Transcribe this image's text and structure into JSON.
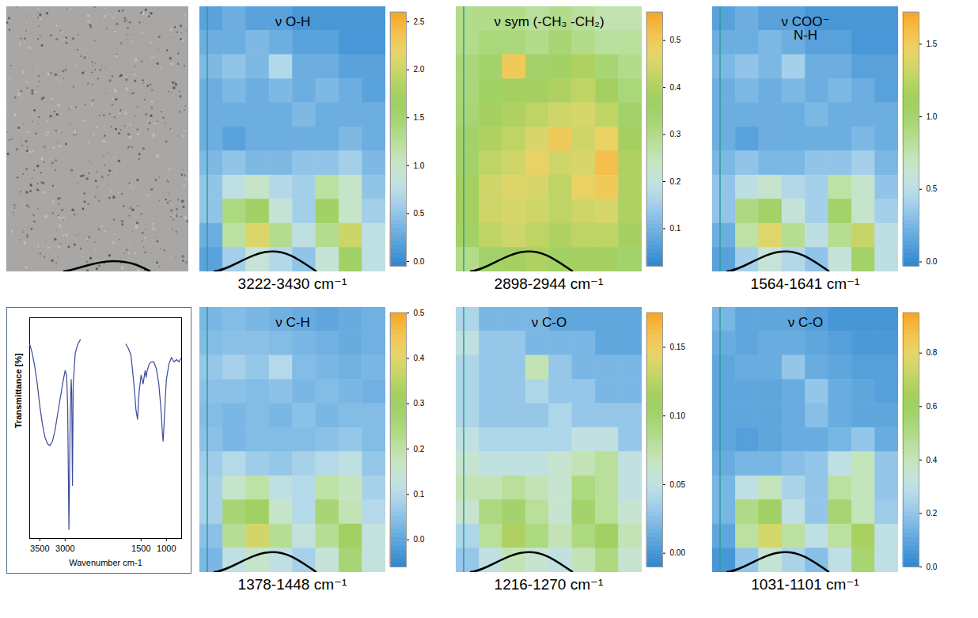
{
  "chart_data": [
    {
      "type": "photo"
    },
    {
      "type": "heatmap",
      "title": "ν O-H",
      "xlabel": "3222-3430 cm⁻¹",
      "xlim": [
        0,
        8
      ],
      "ylim": [
        0,
        11
      ],
      "tick_labels": false,
      "colorbar": {
        "range": [
          -0.05,
          2.6
        ],
        "ticks": [
          {
            "value": 0,
            "label": "0.0"
          },
          0.5,
          {
            "value": 1,
            "label": "1.0"
          },
          1.5,
          {
            "value": 2,
            "label": "2.0"
          },
          2.5
        ]
      },
      "cells": [
        [
          0.2,
          0.3,
          0.2,
          0.2,
          0.1,
          0.1,
          0.1,
          0.1
        ],
        [
          0.3,
          0.3,
          0.4,
          0.3,
          0.2,
          0.2,
          0.1,
          0.1
        ],
        [
          0.4,
          0.5,
          0.4,
          0.7,
          0.3,
          0.3,
          0.2,
          0.2
        ],
        [
          0.3,
          0.4,
          0.3,
          0.4,
          0.3,
          0.4,
          0.3,
          0.2
        ],
        [
          0.3,
          0.3,
          0.3,
          0.3,
          0.4,
          0.3,
          0.3,
          0.3
        ],
        [
          0.3,
          0.2,
          0.3,
          0.3,
          0.3,
          0.3,
          0.4,
          0.3
        ],
        [
          0.4,
          0.5,
          0.4,
          0.4,
          0.5,
          0.5,
          0.6,
          0.4
        ],
        [
          0.5,
          0.8,
          1.0,
          0.7,
          0.6,
          1.2,
          1.0,
          0.5
        ],
        [
          0.5,
          1.4,
          1.6,
          0.9,
          0.6,
          1.6,
          1.0,
          0.6
        ],
        [
          0.3,
          1.2,
          2.1,
          1.3,
          0.8,
          1.3,
          2.0,
          0.8
        ],
        [
          0.2,
          0.6,
          0.9,
          0.7,
          0.5,
          0.9,
          1.6,
          0.8
        ]
      ]
    },
    {
      "type": "heatmap",
      "title": "ν sym (-CH₃ -CH₂)",
      "xlabel": "2898-2944 cm⁻¹",
      "xlim": [
        0,
        8
      ],
      "ylim": [
        0,
        11
      ],
      "tick_labels": false,
      "colorbar": {
        "range": [
          0.02,
          0.56
        ],
        "ticks": [
          0.1,
          0.2,
          0.3,
          0.4,
          0.5
        ]
      },
      "cells": [
        [
          0.3,
          0.3,
          0.3,
          0.28,
          0.3,
          0.28,
          0.26,
          0.26
        ],
        [
          0.3,
          0.32,
          0.32,
          0.3,
          0.33,
          0.3,
          0.28,
          0.28
        ],
        [
          0.32,
          0.35,
          0.5,
          0.35,
          0.36,
          0.4,
          0.33,
          0.3
        ],
        [
          0.32,
          0.36,
          0.38,
          0.38,
          0.4,
          0.42,
          0.38,
          0.32
        ],
        [
          0.33,
          0.38,
          0.4,
          0.42,
          0.44,
          0.45,
          0.42,
          0.35
        ],
        [
          0.35,
          0.4,
          0.42,
          0.45,
          0.5,
          0.44,
          0.48,
          0.38
        ],
        [
          0.35,
          0.42,
          0.44,
          0.48,
          0.44,
          0.45,
          0.52,
          0.4
        ],
        [
          0.38,
          0.44,
          0.46,
          0.45,
          0.42,
          0.48,
          0.5,
          0.4
        ],
        [
          0.38,
          0.44,
          0.45,
          0.44,
          0.42,
          0.44,
          0.45,
          0.4
        ],
        [
          0.36,
          0.42,
          0.44,
          0.42,
          0.4,
          0.42,
          0.42,
          0.38
        ],
        [
          0.3,
          0.35,
          0.38,
          0.4,
          0.36,
          0.38,
          0.38,
          0.35
        ]
      ]
    },
    {
      "type": "heatmap",
      "title": "ν COO⁻\nN-H",
      "xlabel": "1564-1641 cm⁻¹",
      "xlim": [
        0,
        8
      ],
      "ylim": [
        0,
        11
      ],
      "tick_labels": false,
      "colorbar": {
        "range": [
          -0.03,
          1.72
        ],
        "ticks": [
          {
            "value": 0,
            "label": "0.0"
          },
          0.5,
          {
            "value": 1,
            "label": "1.0"
          },
          1.5
        ]
      },
      "cells": [
        [
          0.13,
          0.2,
          0.13,
          0.13,
          0.07,
          0.07,
          0.07,
          0.07
        ],
        [
          0.2,
          0.2,
          0.26,
          0.2,
          0.13,
          0.13,
          0.07,
          0.07
        ],
        [
          0.26,
          0.33,
          0.26,
          0.4,
          0.2,
          0.2,
          0.13,
          0.13
        ],
        [
          0.2,
          0.26,
          0.2,
          0.26,
          0.2,
          0.26,
          0.2,
          0.13
        ],
        [
          0.2,
          0.2,
          0.2,
          0.2,
          0.26,
          0.2,
          0.2,
          0.2
        ],
        [
          0.2,
          0.13,
          0.2,
          0.2,
          0.2,
          0.2,
          0.26,
          0.2
        ],
        [
          0.26,
          0.33,
          0.26,
          0.26,
          0.33,
          0.33,
          0.4,
          0.26
        ],
        [
          0.33,
          0.52,
          0.65,
          0.46,
          0.4,
          0.78,
          0.65,
          0.33
        ],
        [
          0.33,
          0.91,
          1.05,
          0.59,
          0.4,
          1.05,
          0.65,
          0.4
        ],
        [
          0.2,
          0.78,
          1.4,
          0.85,
          0.52,
          0.85,
          1.3,
          0.52
        ],
        [
          0.13,
          0.4,
          0.59,
          0.46,
          0.33,
          0.59,
          1.05,
          0.52
        ]
      ]
    },
    {
      "type": "line",
      "xlabel": "Wavenumber cm-1",
      "ylabel": "Transmittance [%]",
      "color": "#3b4a9c",
      "xlim": [
        3700,
        700
      ],
      "ylim": [
        0,
        100
      ],
      "xticks": [
        3500,
        3000,
        1500,
        1000
      ],
      "tick_labels": "x",
      "x": [
        3700,
        3650,
        3600,
        3550,
        3500,
        3450,
        3400,
        3350,
        3300,
        3250,
        3200,
        3150,
        3100,
        3050,
        3000,
        2970,
        2950,
        2925,
        2900,
        2880,
        2870,
        2855,
        2840,
        2800,
        2750,
        2700,
        2250,
        1800,
        1750,
        1700,
        1650,
        1620,
        1600,
        1570,
        1540,
        1500,
        1460,
        1420,
        1400,
        1380,
        1340,
        1300,
        1250,
        1200,
        1150,
        1120,
        1100,
        1080,
        1065,
        1050,
        1020,
        1000,
        950,
        900,
        850,
        800,
        750,
        700
      ],
      "values": [
        88,
        84,
        78,
        70,
        60,
        52,
        46,
        43,
        42,
        44,
        49,
        56,
        63,
        70,
        76,
        74,
        60,
        4,
        55,
        72,
        66,
        24,
        70,
        84,
        88,
        90,
        null,
        88,
        86,
        83,
        72,
        64,
        58,
        54,
        66,
        74,
        70,
        76,
        73,
        76,
        79,
        80,
        80,
        77,
        70,
        62,
        56,
        48,
        44,
        50,
        64,
        72,
        79,
        82,
        80,
        81,
        80,
        82
      ]
    },
    {
      "type": "heatmap",
      "title": "ν C-H",
      "xlabel": "1378-1448 cm⁻¹",
      "xlim": [
        0,
        8
      ],
      "ylim": [
        0,
        11
      ],
      "tick_labels": false,
      "colorbar": {
        "range": [
          -0.06,
          0.5
        ],
        "ticks": [
          {
            "value": 0,
            "label": "0.0"
          },
          0.1,
          0.2,
          0.3,
          0.4,
          0.5
        ]
      },
      "cells": [
        [
          0.03,
          0.04,
          0.03,
          0.02,
          0.01,
          0.0,
          0.01,
          0.02
        ],
        [
          0.04,
          0.05,
          0.05,
          0.04,
          0.03,
          0.02,
          0.01,
          0.02
        ],
        [
          0.06,
          0.08,
          0.06,
          0.1,
          0.04,
          0.03,
          0.02,
          0.03
        ],
        [
          0.05,
          0.05,
          0.04,
          0.05,
          0.03,
          0.04,
          0.03,
          0.02
        ],
        [
          0.04,
          0.03,
          0.04,
          0.03,
          0.05,
          0.03,
          0.04,
          0.04
        ],
        [
          0.05,
          0.03,
          0.04,
          0.04,
          0.04,
          0.05,
          0.06,
          0.04
        ],
        [
          0.07,
          0.1,
          0.07,
          0.06,
          0.08,
          0.1,
          0.12,
          0.06
        ],
        [
          0.08,
          0.16,
          0.2,
          0.12,
          0.1,
          0.2,
          0.17,
          0.08
        ],
        [
          0.08,
          0.26,
          0.3,
          0.16,
          0.1,
          0.26,
          0.18,
          0.1
        ],
        [
          0.05,
          0.22,
          0.38,
          0.22,
          0.13,
          0.22,
          0.3,
          0.13
        ],
        [
          0.03,
          0.12,
          0.16,
          0.12,
          0.08,
          0.14,
          0.26,
          0.13
        ]
      ]
    },
    {
      "type": "heatmap",
      "title": "ν C-O",
      "xlabel": "1216-1270 cm⁻¹",
      "xlim": [
        0,
        8
      ],
      "ylim": [
        0,
        11
      ],
      "tick_labels": false,
      "colorbar": {
        "range": [
          -0.01,
          0.175
        ],
        "ticks": [
          {
            "value": 0,
            "label": "0.00"
          },
          {
            "value": 0.05,
            "label": "0.05"
          },
          {
            "value": 0.1,
            "label": "0.10"
          },
          {
            "value": 0.15,
            "label": "0.15"
          }
        ]
      },
      "cells": [
        [
          0.04,
          0.02,
          0.02,
          0.02,
          0.01,
          0.01,
          0.01,
          0.01
        ],
        [
          0.05,
          0.03,
          0.03,
          0.02,
          0.02,
          0.02,
          0.01,
          0.01
        ],
        [
          0.04,
          0.03,
          0.03,
          0.07,
          0.03,
          0.02,
          0.02,
          0.02
        ],
        [
          0.04,
          0.03,
          0.03,
          0.04,
          0.03,
          0.03,
          0.02,
          0.02
        ],
        [
          0.04,
          0.03,
          0.03,
          0.03,
          0.04,
          0.03,
          0.03,
          0.03
        ],
        [
          0.05,
          0.04,
          0.04,
          0.04,
          0.04,
          0.05,
          0.05,
          0.03
        ],
        [
          0.06,
          0.05,
          0.05,
          0.05,
          0.06,
          0.07,
          0.08,
          0.05
        ],
        [
          0.07,
          0.07,
          0.08,
          0.07,
          0.06,
          0.09,
          0.08,
          0.05
        ],
        [
          0.06,
          0.09,
          0.1,
          0.08,
          0.06,
          0.1,
          0.08,
          0.06
        ],
        [
          0.04,
          0.08,
          0.12,
          0.09,
          0.07,
          0.09,
          0.11,
          0.07
        ],
        [
          0.03,
          0.05,
          0.07,
          0.06,
          0.05,
          0.07,
          0.09,
          0.06
        ]
      ]
    },
    {
      "type": "heatmap",
      "title": "ν C-O",
      "xlabel": "1031-1101 cm⁻¹",
      "xlim": [
        0,
        8
      ],
      "ylim": [
        0,
        11
      ],
      "tick_labels": false,
      "colorbar": {
        "range": [
          0,
          0.95
        ],
        "ticks": [
          {
            "value": 0,
            "label": "0.0"
          },
          0.2,
          0.4,
          0.6,
          0.8
        ]
      },
      "cells": [
        [
          0.15,
          0.1,
          0.1,
          0.1,
          0.08,
          0.05,
          0.05,
          0.05
        ],
        [
          0.12,
          0.1,
          0.12,
          0.12,
          0.1,
          0.08,
          0.06,
          0.06
        ],
        [
          0.1,
          0.12,
          0.12,
          0.2,
          0.12,
          0.1,
          0.08,
          0.08
        ],
        [
          0.1,
          0.1,
          0.1,
          0.12,
          0.2,
          0.12,
          0.1,
          0.08
        ],
        [
          0.1,
          0.1,
          0.1,
          0.12,
          0.18,
          0.12,
          0.1,
          0.1
        ],
        [
          0.1,
          0.08,
          0.1,
          0.12,
          0.12,
          0.15,
          0.2,
          0.12
        ],
        [
          0.12,
          0.15,
          0.15,
          0.18,
          0.2,
          0.3,
          0.4,
          0.2
        ],
        [
          0.15,
          0.3,
          0.4,
          0.25,
          0.2,
          0.45,
          0.4,
          0.2
        ],
        [
          0.15,
          0.5,
          0.6,
          0.3,
          0.2,
          0.55,
          0.4,
          0.22
        ],
        [
          0.1,
          0.45,
          0.75,
          0.45,
          0.3,
          0.45,
          0.65,
          0.3
        ],
        [
          0.05,
          0.2,
          0.35,
          0.25,
          0.18,
          0.3,
          0.55,
          0.3
        ]
      ]
    }
  ]
}
